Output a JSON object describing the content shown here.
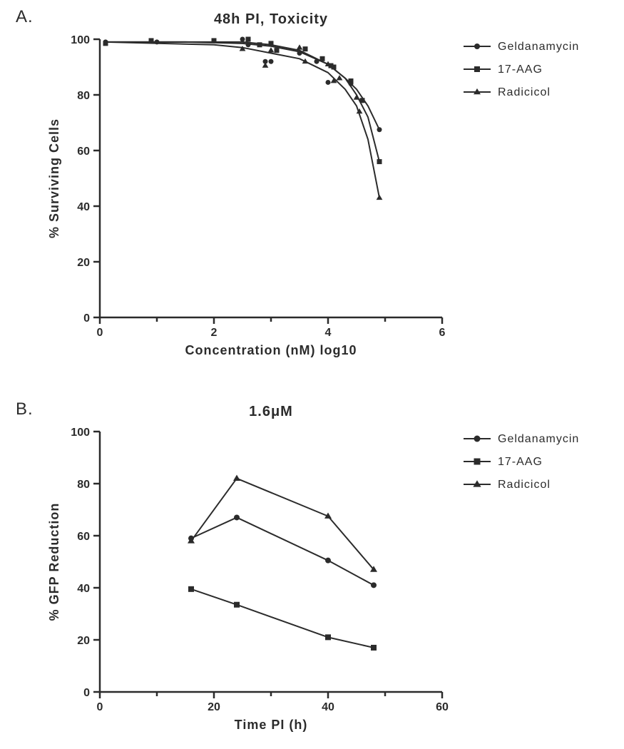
{
  "panelA": {
    "label": "A.",
    "title": "48h PI, Toxicity",
    "type": "scatter-line",
    "xlabel": "Concentration (nM) log10",
    "ylabel": "% Surviving Cells",
    "xlim": [
      0,
      6
    ],
    "ylim": [
      0,
      100
    ],
    "xtick_step": 2,
    "xtick_minor": 1,
    "ytick_step": 20,
    "axis_color": "#2b2b2b",
    "axis_width": 2.5,
    "line_color": "#2b2b2b",
    "line_width": 2,
    "marker_size": 7,
    "tick_fontsize": 16,
    "label_fontsize": 18,
    "title_fontsize": 20,
    "background_color": "#ffffff",
    "series": [
      {
        "name": "Geldanamycin",
        "marker": "circle",
        "color": "#2b2b2b",
        "x": [
          0.1,
          1.0,
          2.0,
          2.5,
          2.6,
          2.9,
          3.0,
          3.5,
          3.8,
          4.0,
          4.1,
          4.4,
          4.6,
          4.9
        ],
        "y": [
          99,
          99,
          99.5,
          100,
          98,
          92,
          92,
          95,
          92,
          84.5,
          90,
          84,
          78,
          67.5
        ],
        "curve": [
          [
            0.1,
            99
          ],
          [
            1.5,
            99
          ],
          [
            2.5,
            98.5
          ],
          [
            3.0,
            97.5
          ],
          [
            3.5,
            95.5
          ],
          [
            4.0,
            91
          ],
          [
            4.3,
            86
          ],
          [
            4.5,
            82
          ],
          [
            4.7,
            76
          ],
          [
            4.9,
            67.5
          ]
        ]
      },
      {
        "name": "17-AAG",
        "marker": "square",
        "color": "#2b2b2b",
        "x": [
          0.1,
          0.9,
          2.0,
          2.6,
          2.8,
          3.0,
          3.1,
          3.6,
          3.9,
          4.05,
          4.1,
          4.4,
          4.6,
          4.9
        ],
        "y": [
          98.5,
          99.5,
          99.5,
          100,
          98,
          98.5,
          96,
          96.5,
          93,
          90.5,
          90,
          85,
          78,
          56
        ],
        "curve": [
          [
            0.1,
            99
          ],
          [
            1.5,
            99
          ],
          [
            2.5,
            99
          ],
          [
            3.0,
            98
          ],
          [
            3.5,
            96
          ],
          [
            4.0,
            91
          ],
          [
            4.3,
            86
          ],
          [
            4.5,
            80
          ],
          [
            4.7,
            72
          ],
          [
            4.9,
            56
          ]
        ]
      },
      {
        "name": "Radicicol",
        "marker": "triangle",
        "color": "#2b2b2b",
        "x": [
          2.5,
          2.9,
          3.0,
          3.5,
          3.6,
          4.0,
          4.1,
          4.2,
          4.5,
          4.55,
          4.9
        ],
        "y": [
          96.5,
          90.5,
          96,
          97,
          92,
          91,
          85,
          86,
          79,
          74,
          43
        ],
        "curve": [
          [
            0.1,
            99
          ],
          [
            2.0,
            98
          ],
          [
            2.5,
            97
          ],
          [
            3.0,
            95
          ],
          [
            3.5,
            93
          ],
          [
            4.0,
            88
          ],
          [
            4.3,
            82
          ],
          [
            4.5,
            76
          ],
          [
            4.7,
            64
          ],
          [
            4.9,
            43
          ]
        ]
      }
    ],
    "legend": {
      "position": "right",
      "line_length": 38,
      "items": [
        "Geldanamycin",
        "17-AAG",
        "Radicicol"
      ]
    }
  },
  "panelB": {
    "label": "B.",
    "title": "1.6μM",
    "type": "line",
    "xlabel": "Time PI (h)",
    "ylabel": "% GFP Reduction",
    "xlim": [
      0,
      60
    ],
    "ylim": [
      0,
      100
    ],
    "xtick_step": 20,
    "xtick_minor": 10,
    "ytick_step": 20,
    "axis_color": "#2b2b2b",
    "axis_width": 2.5,
    "line_color": "#2b2b2b",
    "line_width": 2,
    "marker_size": 8,
    "tick_fontsize": 16,
    "label_fontsize": 18,
    "title_fontsize": 18,
    "background_color": "#ffffff",
    "series": [
      {
        "name": "Geldanamycin",
        "marker": "circle",
        "color": "#2b2b2b",
        "x": [
          16,
          24,
          40,
          48
        ],
        "y": [
          59,
          67,
          50.5,
          41
        ]
      },
      {
        "name": "17-AAG",
        "marker": "square",
        "color": "#2b2b2b",
        "x": [
          16,
          24,
          40,
          48
        ],
        "y": [
          39.5,
          33.5,
          21,
          17
        ]
      },
      {
        "name": "Radicicol",
        "marker": "triangle",
        "color": "#2b2b2b",
        "x": [
          16,
          24,
          40,
          48
        ],
        "y": [
          58,
          82,
          67.5,
          47
        ]
      }
    ],
    "legend": {
      "position": "right",
      "line_length": 38,
      "items": [
        "Geldanamycin",
        "17-AAG",
        "Radicicol"
      ]
    }
  }
}
